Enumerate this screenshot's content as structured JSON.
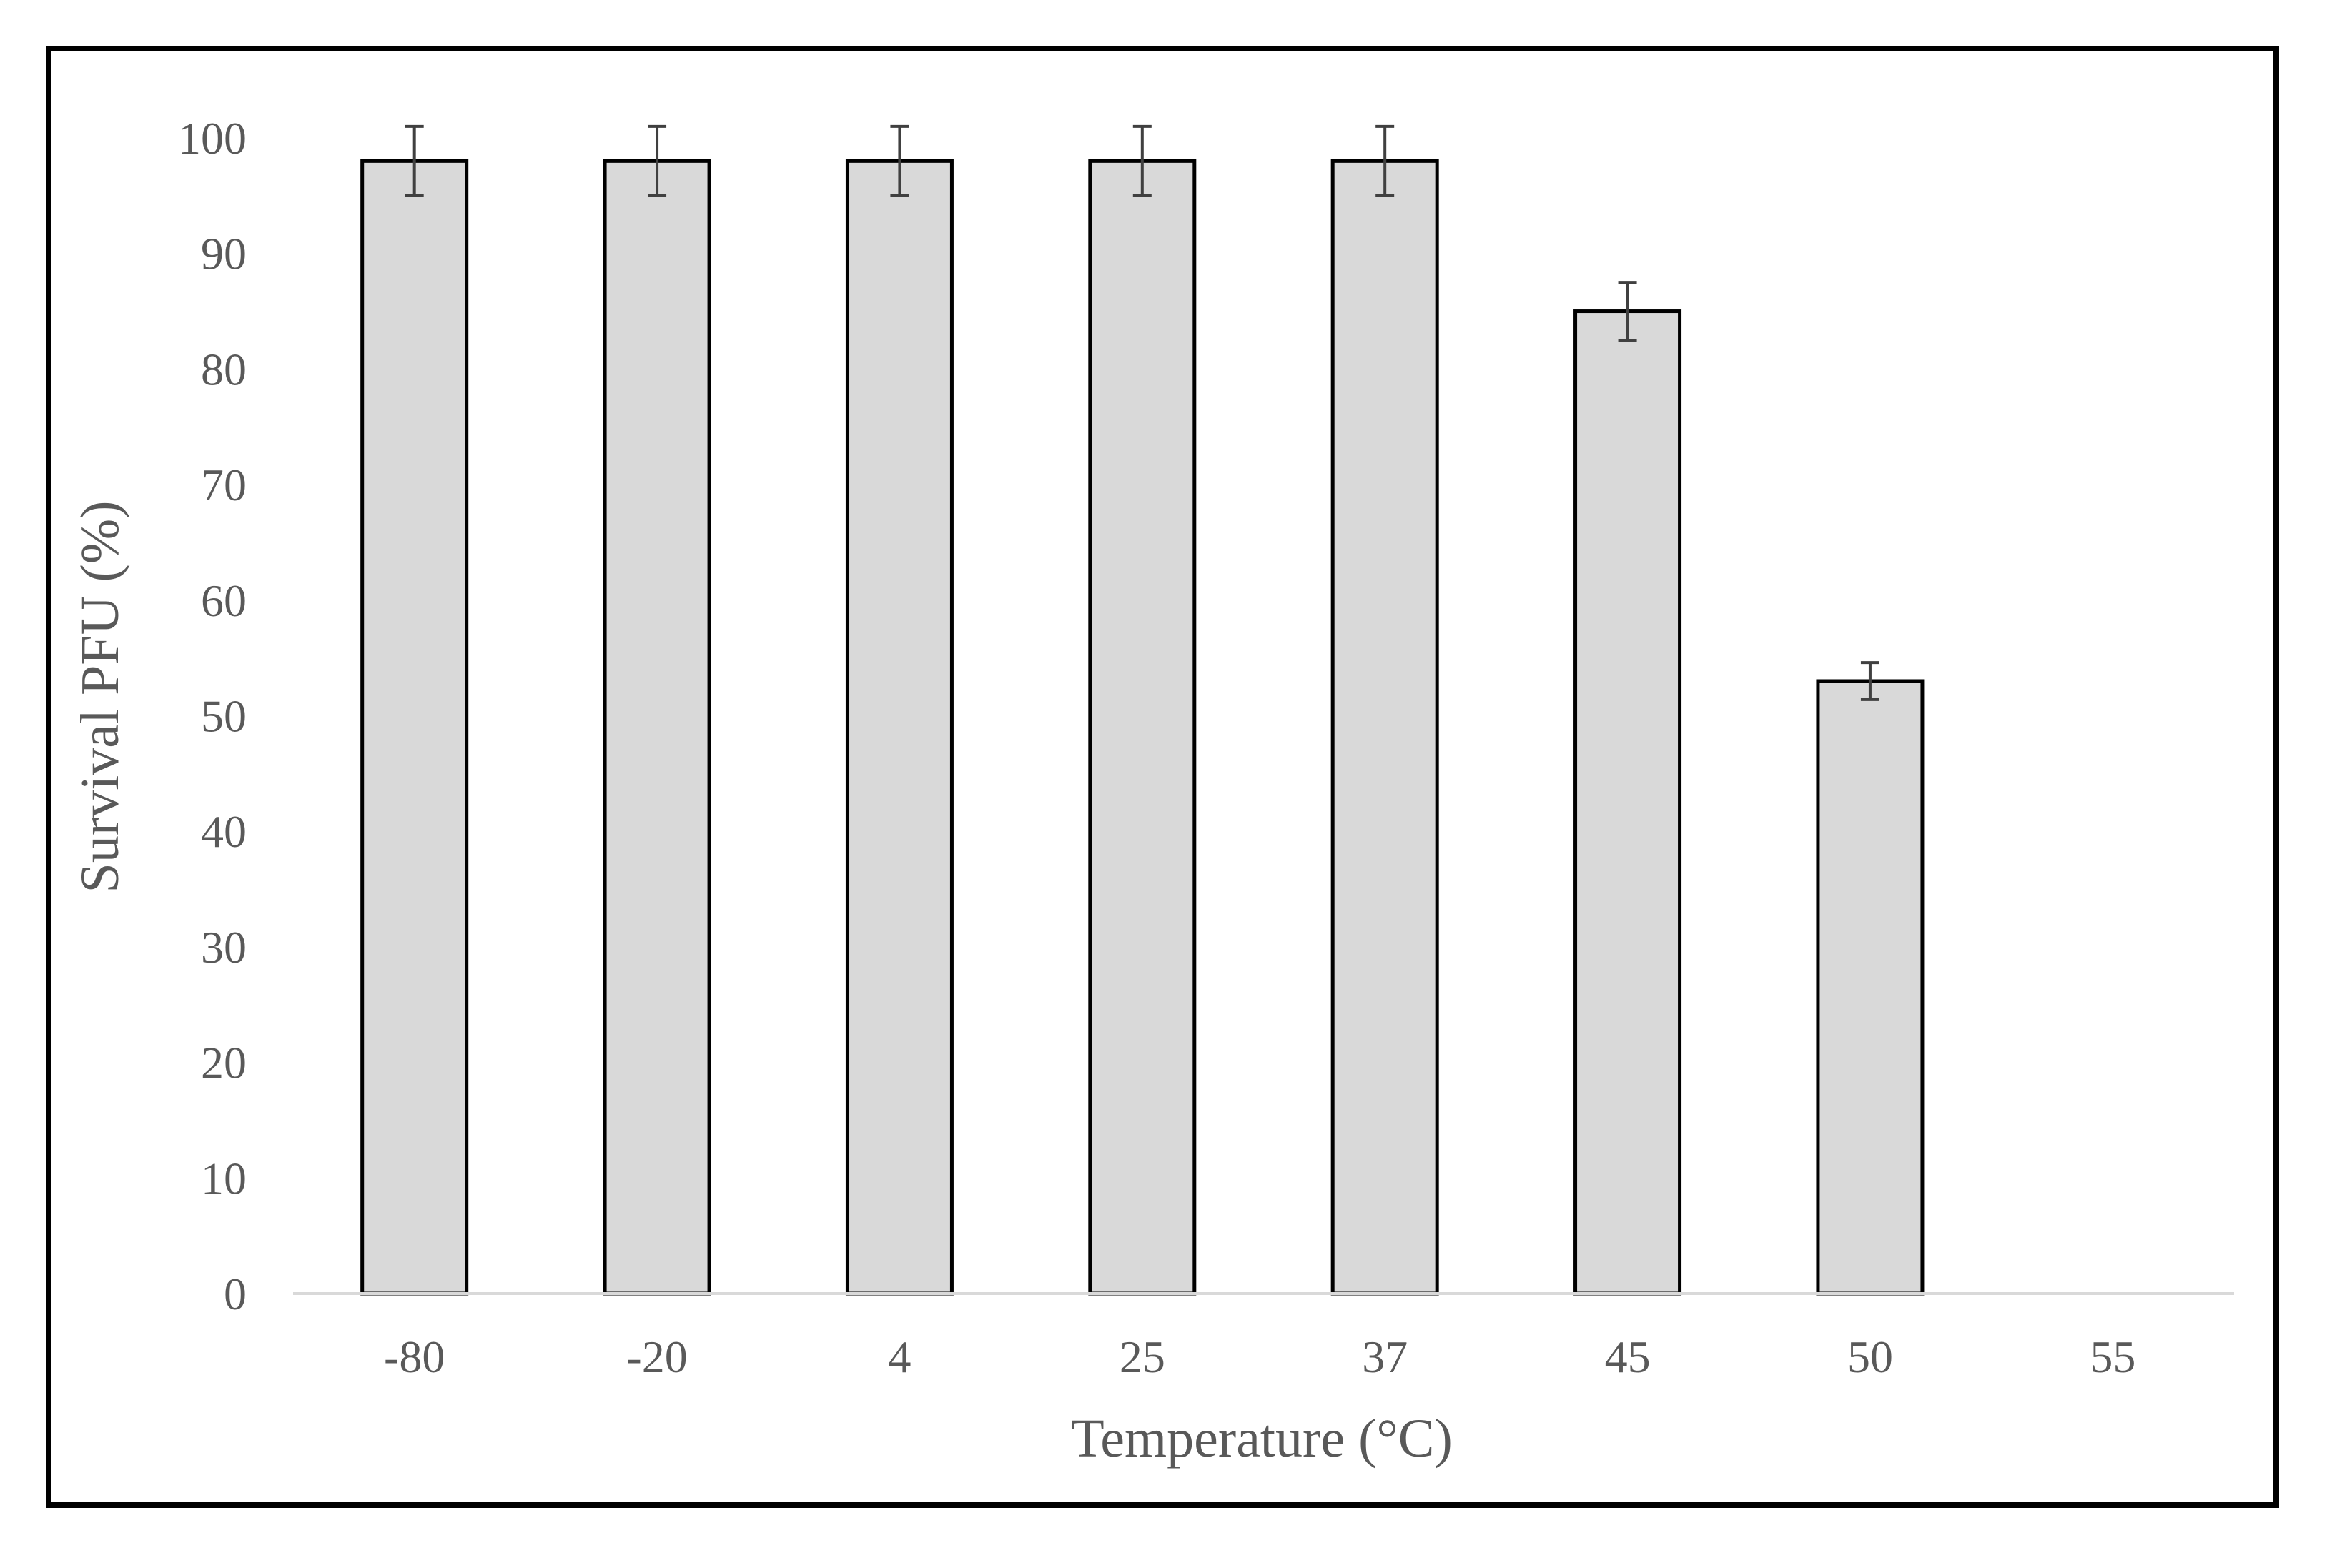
{
  "chart_data": {
    "type": "bar",
    "title": "",
    "xlabel": "Temperature  (°C)",
    "ylabel": "Survival  PFU (%)",
    "categories": [
      "-80",
      "-20",
      "4",
      "25",
      "37",
      "45",
      "50",
      "55"
    ],
    "values": [
      98,
      98,
      98,
      98,
      98,
      85,
      53,
      0
    ],
    "errors": [
      3,
      3,
      3,
      3,
      3,
      2.5,
      1.6,
      0
    ],
    "ylim": [
      0,
      100
    ],
    "yticks": [
      "0",
      "10",
      "20",
      "30",
      "40",
      "50",
      "60",
      "70",
      "80",
      "90",
      "100"
    ],
    "grid": false,
    "legend": "none",
    "colors": {
      "bar_fill": "#d9d9d9",
      "bar_stroke": "#000000",
      "axis": "#d9d9d9",
      "error": "#404040"
    }
  }
}
